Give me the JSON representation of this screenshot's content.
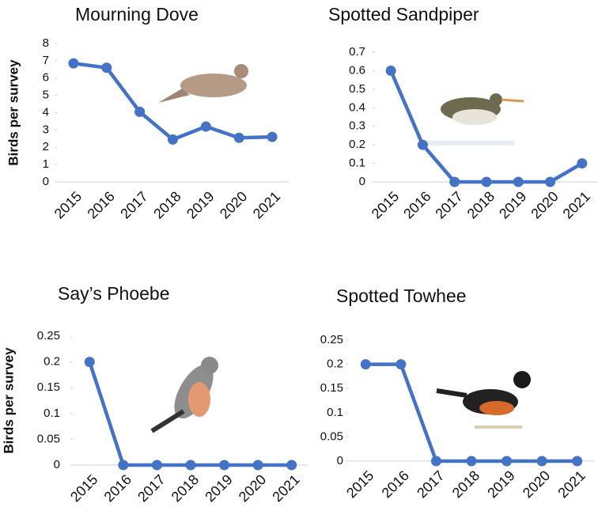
{
  "chart_data": [
    {
      "type": "line",
      "title": "Mourning Dove",
      "y_label": "Birds per survey",
      "categories": [
        "2015",
        "2016",
        "2017",
        "2018",
        "2019",
        "2020",
        "2021"
      ],
      "values": [
        6.85,
        6.6,
        4.05,
        2.45,
        3.2,
        2.55,
        2.6
      ],
      "color": "#4472c4",
      "ylim": [
        0,
        8
      ],
      "yticks": [
        0,
        1,
        2,
        3,
        4,
        5,
        6,
        7,
        8
      ]
    },
    {
      "type": "line",
      "title": "Spotted Sandpiper",
      "categories": [
        "2015",
        "2016",
        "2017",
        "2018",
        "2019",
        "2020",
        "2021"
      ],
      "values": [
        0.6,
        0.2,
        0,
        0,
        0,
        0,
        0.1
      ],
      "color": "#4472c4",
      "ylim": [
        0,
        0.7
      ],
      "yticks": [
        0,
        0.1,
        0.2,
        0.3,
        0.4,
        0.5,
        0.6,
        0.7
      ]
    },
    {
      "type": "line",
      "title": "Say’s Phoebe",
      "y_label": "Birds per survey",
      "categories": [
        "2015",
        "2016",
        "2017",
        "2018",
        "2019",
        "2020",
        "2021"
      ],
      "values": [
        0.2,
        0,
        0,
        0,
        0,
        0,
        0
      ],
      "color": "#4472c4",
      "ylim": [
        0,
        0.25
      ],
      "yticks": [
        0,
        0.05,
        0.1,
        0.15,
        0.2,
        0.25
      ]
    },
    {
      "type": "line",
      "title": "Spotted Towhee",
      "categories": [
        "2015",
        "2016",
        "2017",
        "2018",
        "2019",
        "2020",
        "2021"
      ],
      "values": [
        0.2,
        0.2,
        0,
        0,
        0,
        0,
        0
      ],
      "color": "#4472c4",
      "ylim": [
        0,
        0.25
      ],
      "yticks": [
        0,
        0.05,
        0.1,
        0.15,
        0.2,
        0.25
      ]
    }
  ]
}
